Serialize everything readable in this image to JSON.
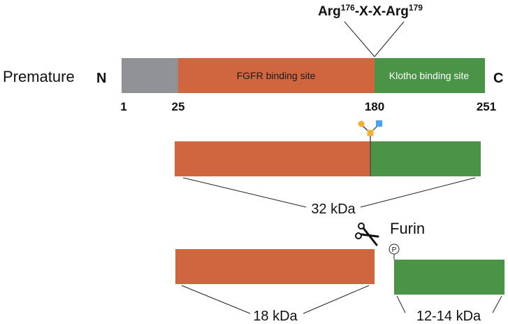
{
  "colors": {
    "signal": "#909296",
    "fgfr": "#d0663f",
    "klotho": "#4a9347",
    "glycan_circle": "#f2b132",
    "glycan_square": "#4aa3ef",
    "line": "#222222"
  },
  "motif": {
    "prefix": "Arg",
    "sup1": "176",
    "middle": "-X-X-Arg",
    "sup2": "179"
  },
  "premature": {
    "label": "Premature",
    "n_terminus": "N",
    "c_terminus": "C",
    "fgfr_label": "FGFR binding site",
    "klotho_label": "Klotho binding site",
    "positions": [
      "1",
      "25",
      "180",
      "251"
    ]
  },
  "processed": {
    "full_mass": "32 kDa",
    "enzyme": "Furin",
    "phospho_symbol": "P",
    "n_fragment_mass": "18 kDa",
    "c_fragment_mass": "12-14 kDa"
  },
  "icons": {
    "scissors": "scissors-icon",
    "phosphate": "phosphate-icon",
    "glycan": "o-glycan-icon"
  }
}
